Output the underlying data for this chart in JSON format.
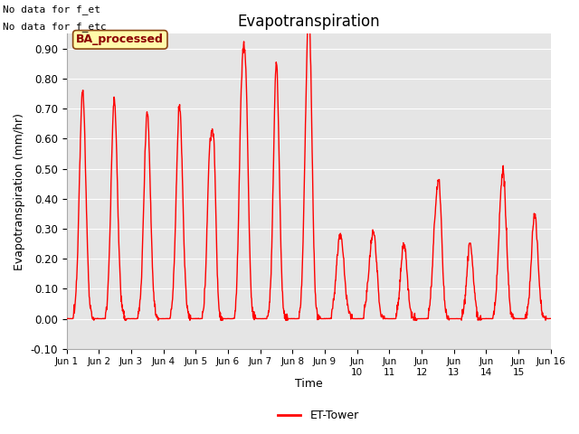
{
  "title": "Evapotranspiration",
  "ylabel": "Evapotranspiration (mm/hr)",
  "xlabel": "Time",
  "ylim": [
    -0.1,
    0.95
  ],
  "yticks": [
    -0.1,
    0.0,
    0.1,
    0.2,
    0.3,
    0.4,
    0.5,
    0.6,
    0.7,
    0.8,
    0.9
  ],
  "annotation_text1": "No data for f_et",
  "annotation_text2": "No data for f_etc",
  "ba_label": "BA_processed",
  "legend_label": "ET-Tower",
  "line_color": "red",
  "background_color": "#e5e5e5",
  "figure_color": "#ffffff",
  "n_days": 15,
  "xtick_labels": [
    "Jun 1",
    "Jun 2",
    "Jun 3",
    "Jun 4",
    "Jun 5",
    "Jun 6",
    "Jun 7",
    "Jun 8",
    "Jun 9",
    "Jun\n10",
    "Jun\n11",
    "Jun\n12",
    "Jun\n13",
    "Jun\n14",
    "Jun\n15",
    "Jun 16"
  ]
}
